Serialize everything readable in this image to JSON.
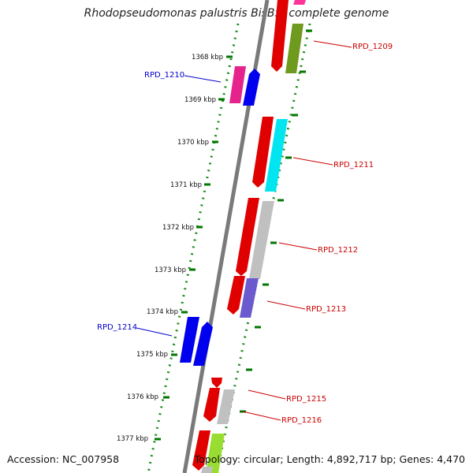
{
  "title": "Rhodopseudomonas palustris BisB5, complete genome",
  "footer": {
    "accession": "Accession: NC_007958",
    "topology": "Topology: circular; Length: 4,892,717 bp; Genes: 4,470"
  },
  "ticks": [
    {
      "label": "1368 kbp"
    },
    {
      "label": "1369 kbp"
    },
    {
      "label": "1370 kbp"
    },
    {
      "label": "1371 kbp"
    },
    {
      "label": "1372 kbp"
    },
    {
      "label": "1373 kbp"
    },
    {
      "label": "1374 kbp"
    },
    {
      "label": "1375 kbp"
    },
    {
      "label": "1376 kbp"
    },
    {
      "label": "1377 kbp"
    }
  ],
  "genes": [
    {
      "name": "RPD_1209",
      "strand": "+",
      "color": "#cc0000"
    },
    {
      "name": "RPD_1210",
      "strand": "-",
      "color": "#0000cc"
    },
    {
      "name": "RPD_1211",
      "strand": "+",
      "color": "#cc0000"
    },
    {
      "name": "RPD_1212",
      "strand": "+",
      "color": "#cc0000"
    },
    {
      "name": "RPD_1213",
      "strand": "+",
      "color": "#cc0000"
    },
    {
      "name": "RPD_1214",
      "strand": "-",
      "color": "#0000cc"
    },
    {
      "name": "RPD_1215",
      "strand": "+",
      "color": "#cc0000"
    },
    {
      "name": "RPD_1216",
      "strand": "+",
      "color": "#cc0000"
    }
  ],
  "colors": {
    "forward_label": "#cc0000",
    "reverse_label": "#0000cc",
    "tick": "#007700",
    "backbone": "#808080"
  }
}
